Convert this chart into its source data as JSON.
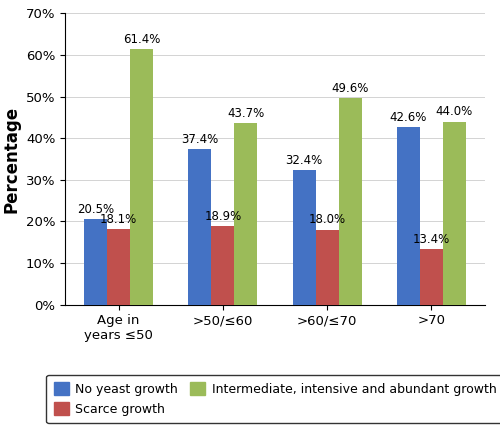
{
  "categories": [
    "Age in\nyears ≤50",
    ">50/≤60",
    ">60/≤70",
    ">70"
  ],
  "series": {
    "No yeast growth": [
      20.5,
      37.4,
      32.4,
      42.6
    ],
    "Scarce growth": [
      18.1,
      18.9,
      18.0,
      13.4
    ],
    "Intermediate, intensive and abundant growth": [
      61.4,
      43.7,
      49.6,
      44.0
    ]
  },
  "colors": {
    "No yeast growth": "#4472C4",
    "Scarce growth": "#C0504D",
    "Intermediate, intensive and abundant growth": "#9BBB59"
  },
  "ylabel": "Percentage",
  "ylim": [
    0,
    70
  ],
  "yticks": [
    0,
    10,
    20,
    30,
    40,
    50,
    60,
    70
  ],
  "ytick_labels": [
    "0%",
    "10%",
    "20%",
    "30%",
    "40%",
    "50%",
    "60%",
    "70%"
  ],
  "bar_width": 0.22,
  "label_fontsize": 8.5,
  "axis_label_fontsize": 12,
  "tick_fontsize": 9.5,
  "legend_fontsize": 9
}
